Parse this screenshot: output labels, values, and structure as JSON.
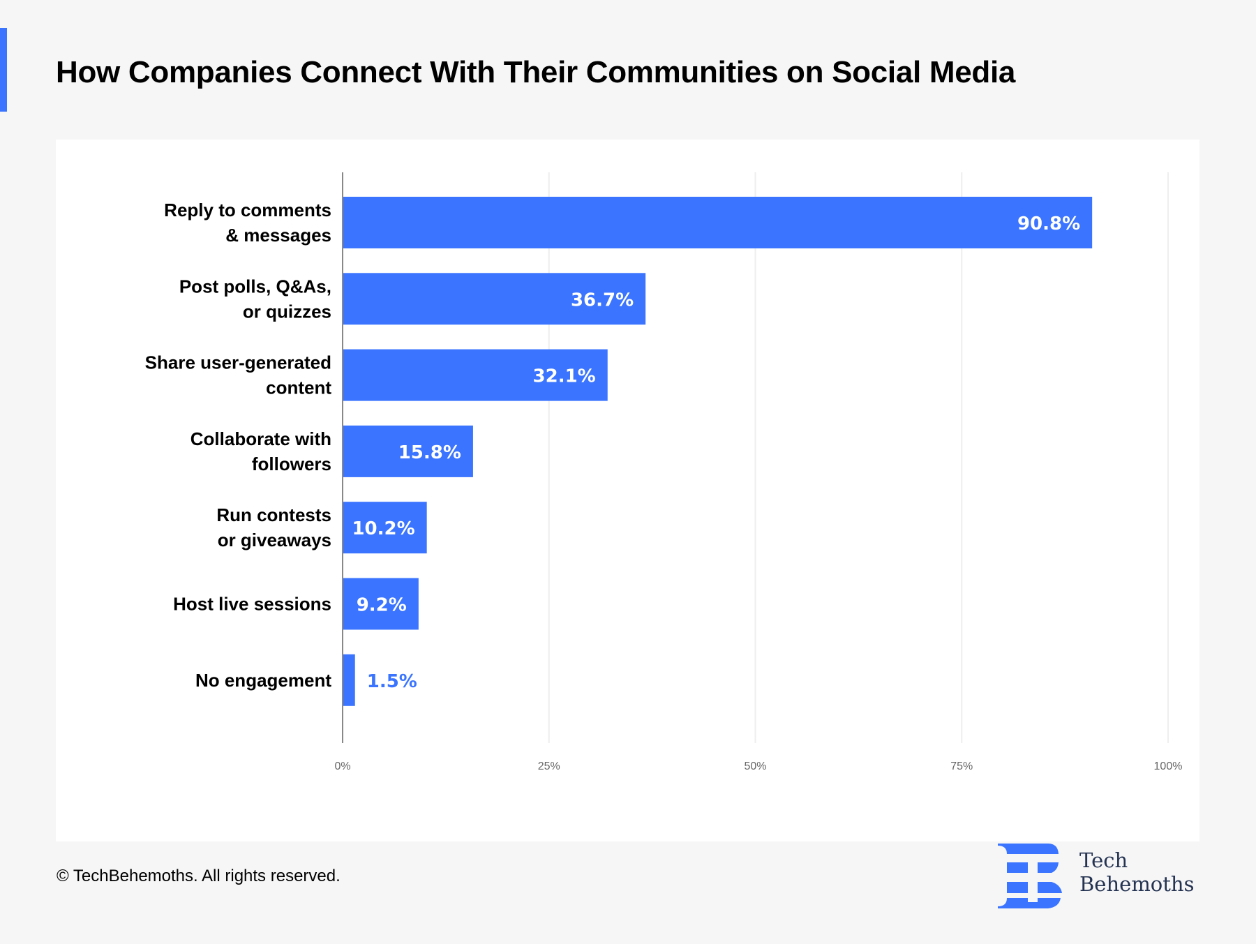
{
  "header": {
    "title": "How Companies Connect With Their Communities on Social Media"
  },
  "colors": {
    "accent": "#3a74ff",
    "bar": "#3a74ff",
    "bar_label_inside": "#ffffff",
    "bar_label_outside": "#3a74ff",
    "gridline": "#eeeeee",
    "axis": "#888888",
    "background": "#f6f6f6",
    "panel": "#ffffff",
    "logo_text": "#243352"
  },
  "chart_data": {
    "type": "bar",
    "orientation": "horizontal",
    "title": "How Companies Connect With Their Communities on Social Media",
    "xlabel": "",
    "ylabel": "",
    "xlim": [
      0,
      100
    ],
    "grid": true,
    "legend": "none",
    "categories": [
      [
        "Reply to comments",
        "& messages"
      ],
      [
        "Post polls, Q&As,",
        "or quizzes"
      ],
      [
        "Share user-generated",
        "content"
      ],
      [
        "Collaborate with",
        "followers"
      ],
      [
        "Run contests",
        "or giveaways"
      ],
      [
        "Host live sessions"
      ],
      [
        "No engagement"
      ]
    ],
    "values": [
      90.8,
      36.7,
      32.1,
      15.8,
      10.2,
      9.2,
      1.5
    ],
    "value_labels": [
      "90.8%",
      "36.7%",
      "32.1%",
      "15.8%",
      "10.2%",
      "9.2%",
      "1.5%"
    ],
    "ticks": [
      0,
      25,
      50,
      75,
      100
    ],
    "tick_labels": [
      "0%",
      "25%",
      "50%",
      "75%",
      "100%"
    ]
  },
  "footer": {
    "copyright": "© TechBehemoths. All rights reserved."
  },
  "logo": {
    "line1": "Tech",
    "line2": "Behemoths",
    "icon": "techbehemoths-b-logo-icon"
  }
}
